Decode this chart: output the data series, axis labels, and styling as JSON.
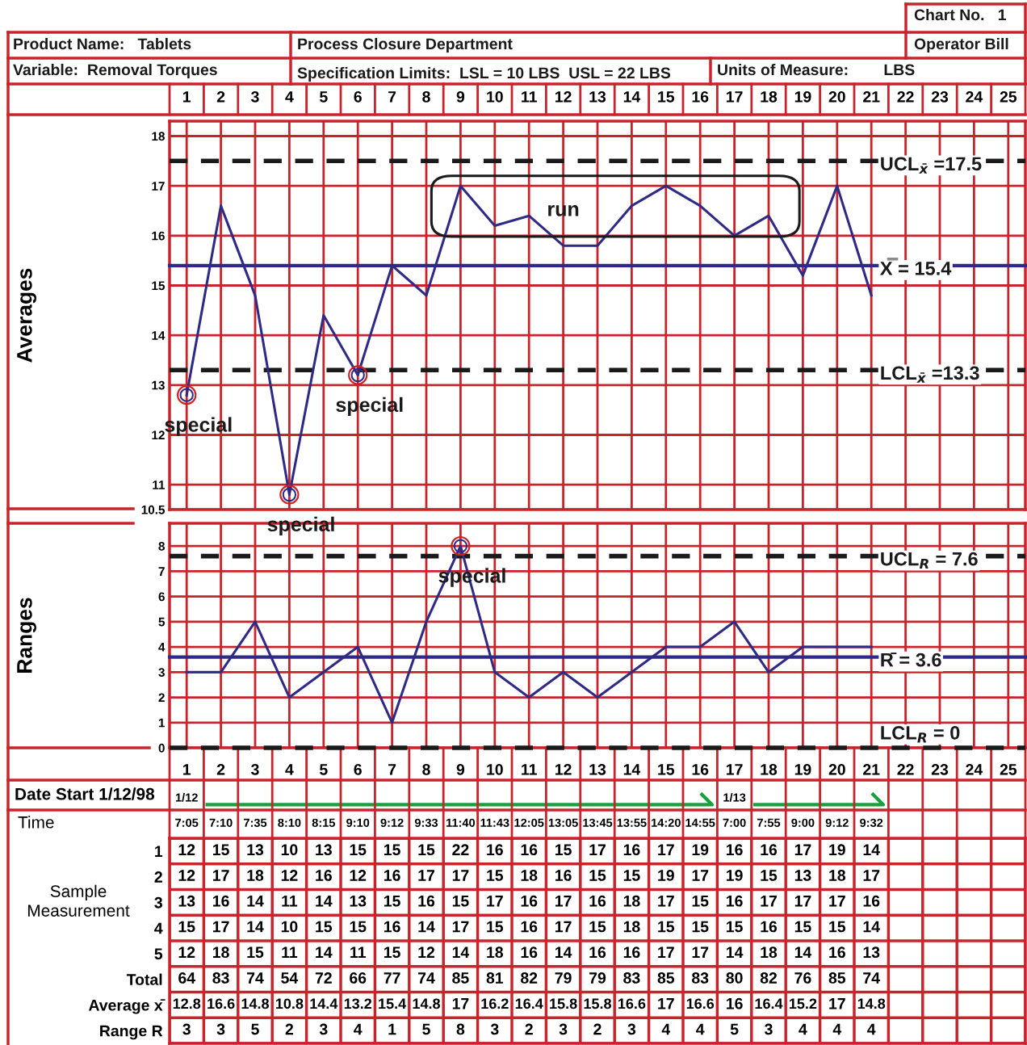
{
  "chart_data": [
    {
      "type": "other",
      "annotations": [
        "Chart No.   1",
        "Product Name:   Tablets",
        "Process Closure Department",
        "Operator Bill",
        "Variable:  Removal Torques",
        "Specification Limits:  LSL = 10 LBS  USL = 22 LBS",
        "Units of Measure:        LBS"
      ]
    },
    {
      "type": "line",
      "ylabel": "Averages",
      "categories": [
        "1",
        "2",
        "3",
        "4",
        "5",
        "6",
        "7",
        "8",
        "9",
        "10",
        "11",
        "12",
        "13",
        "14",
        "15",
        "16",
        "17",
        "18",
        "19",
        "20",
        "21",
        "22",
        "23",
        "24",
        "25"
      ],
      "series": [
        {
          "color": "#2e2a86",
          "values": [
            12.8,
            16.6,
            14.8,
            10.8,
            14.4,
            13.2,
            15.4,
            14.8,
            17,
            16.2,
            16.4,
            15.8,
            15.8,
            16.6,
            17,
            16.6,
            16,
            16.4,
            15.2,
            17,
            14.8,
            null,
            null,
            null,
            null
          ]
        }
      ],
      "ylim": [
        10.5,
        18.3
      ],
      "yticks": [
        10.5,
        11,
        12,
        13,
        14,
        15,
        16,
        17,
        18
      ],
      "grid": true,
      "marker": "none",
      "line_style": "solid",
      "ref_lines": [
        {
          "axis": "y",
          "value": 17.5,
          "label": "UCL$_{x̄}$ =17.5",
          "color": "#1a1a1a",
          "line_style": "dashed"
        },
        {
          "axis": "y",
          "value": 15.4,
          "label": "X̿ = 15.4",
          "color": "#2e2a86",
          "line_style": "solid"
        },
        {
          "axis": "y",
          "value": 13.3,
          "label": "LCL$_{x̄}$ =13.3",
          "color": "#1a1a1a",
          "line_style": "dashed"
        }
      ],
      "annotations": [
        {
          "text": "special",
          "x": "1",
          "y": 12.8
        },
        {
          "text": "special",
          "x": "4",
          "y": 10.8
        },
        {
          "text": "special",
          "x": "6",
          "y": 13.2
        },
        "run"
      ]
    },
    {
      "type": "line",
      "ylabel": "Ranges",
      "categories": [
        "1",
        "2",
        "3",
        "4",
        "5",
        "6",
        "7",
        "8",
        "9",
        "10",
        "11",
        "12",
        "13",
        "14",
        "15",
        "16",
        "17",
        "18",
        "19",
        "20",
        "21",
        "22",
        "23",
        "24",
        "25"
      ],
      "series": [
        {
          "color": "#2e2a86",
          "values": [
            3,
            3,
            5,
            2,
            3,
            4,
            1,
            5,
            8,
            3,
            2,
            3,
            2,
            3,
            4,
            4,
            5,
            3,
            4,
            4,
            4,
            null,
            null,
            null,
            null
          ]
        }
      ],
      "ylim": [
        0,
        8.9
      ],
      "yticks": [
        0,
        1,
        2,
        3,
        4,
        5,
        6,
        7,
        8
      ],
      "grid": true,
      "marker": "none",
      "line_style": "solid",
      "ref_lines": [
        {
          "axis": "y",
          "value": 7.6,
          "label": "UCL$_{R}$ = 7.6",
          "color": "#1a1a1a",
          "line_style": "dashed"
        },
        {
          "axis": "y",
          "value": 3.6,
          "label": "R̄ = 3.6",
          "color": "#2e2a86",
          "line_style": "solid"
        },
        {
          "axis": "y",
          "value": 0,
          "label": "LCL$_{R}$ = 0",
          "color": "#1a1a1a",
          "line_style": "dashed"
        }
      ],
      "annotations": [
        {
          "text": "special",
          "x": "9",
          "y": 8
        }
      ]
    },
    {
      "type": "heatmap",
      "xlabel": "Time",
      "ylabel": "Sample Measurement",
      "categories": [
        "7:05",
        "7:10",
        "7:35",
        "8:10",
        "8:15",
        "9:10",
        "9:12",
        "9:33",
        "11:40",
        "11:43",
        "12:05",
        "13:05",
        "13:45",
        "13:55",
        "14:20",
        "14:55",
        "7:00",
        "7:55",
        "9:00",
        "9:12",
        "9:32",
        null,
        null,
        null,
        null
      ],
      "y_categories": [
        "1",
        "2",
        "3",
        "4",
        "5",
        "Total",
        "Average x̄",
        "Range R"
      ],
      "cells": [
        [
          12,
          15,
          13,
          10,
          13,
          15,
          15,
          15,
          22,
          16,
          16,
          15,
          17,
          16,
          17,
          19,
          16,
          16,
          17,
          19,
          14,
          null,
          null,
          null,
          null
        ],
        [
          12,
          17,
          18,
          12,
          16,
          12,
          16,
          17,
          17,
          15,
          18,
          16,
          15,
          15,
          19,
          17,
          19,
          15,
          13,
          18,
          17,
          null,
          null,
          null,
          null
        ],
        [
          13,
          16,
          14,
          11,
          14,
          13,
          15,
          16,
          15,
          17,
          16,
          17,
          16,
          18,
          17,
          15,
          16,
          17,
          17,
          17,
          16,
          null,
          null,
          null,
          null
        ],
        [
          15,
          17,
          14,
          10,
          15,
          15,
          16,
          14,
          17,
          15,
          16,
          17,
          15,
          18,
          15,
          15,
          15,
          16,
          15,
          15,
          14,
          null,
          null,
          null,
          null
        ],
        [
          12,
          18,
          15,
          11,
          14,
          11,
          15,
          12,
          14,
          18,
          16,
          14,
          16,
          16,
          17,
          17,
          14,
          18,
          14,
          16,
          13,
          null,
          null,
          null,
          null
        ],
        [
          64,
          83,
          74,
          54,
          72,
          66,
          77,
          74,
          85,
          81,
          82,
          79,
          79,
          83,
          85,
          83,
          80,
          82,
          76,
          85,
          74,
          null,
          null,
          null,
          null
        ],
        [
          12.8,
          16.6,
          14.8,
          10.8,
          14.4,
          13.2,
          15.4,
          14.8,
          17,
          16.2,
          16.4,
          15.8,
          15.8,
          16.6,
          17,
          16.6,
          16,
          16.4,
          15.2,
          17,
          14.8,
          null,
          null,
          null,
          null
        ],
        [
          3,
          3,
          5,
          2,
          3,
          4,
          1,
          5,
          8,
          3,
          2,
          3,
          2,
          3,
          4,
          4,
          5,
          3,
          4,
          4,
          4,
          null,
          null,
          null,
          null
        ]
      ],
      "grid": true,
      "data_labels": true,
      "annotations": [
        "Date Start 1/12/98",
        "1/12",
        "1/13"
      ]
    }
  ]
}
